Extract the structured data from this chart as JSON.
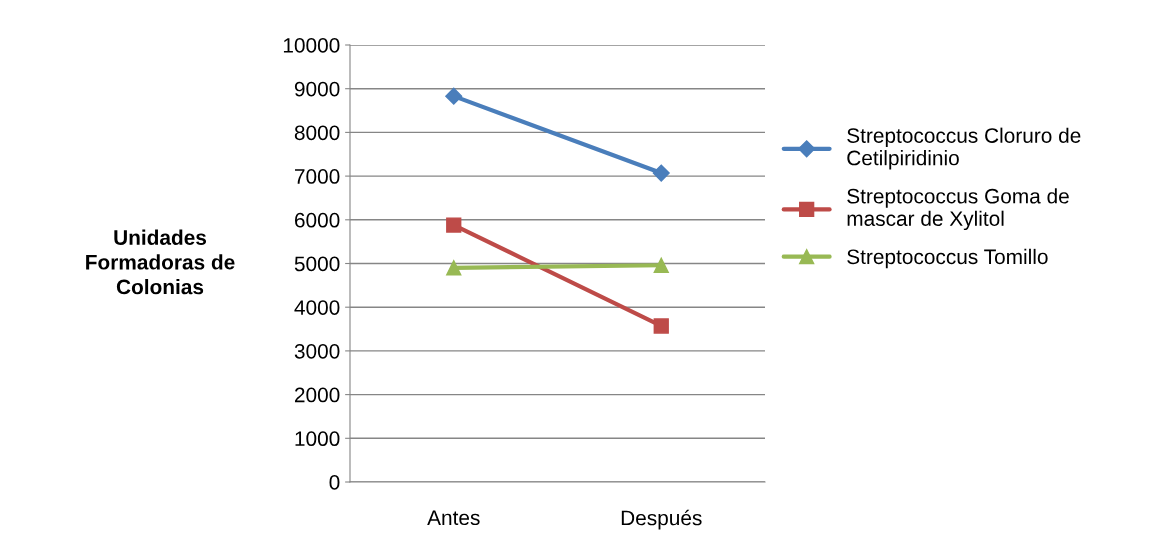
{
  "chart_data": {
    "type": "line",
    "ylabel": "Unidades Formadoras de Colonias",
    "categories": [
      "Antes",
      "Después"
    ],
    "series": [
      {
        "name": "Streptococcus Cloruro de Cetilpiridinio",
        "color": "#4a7ebb",
        "marker": "diamond",
        "values": [
          8830,
          7070
        ]
      },
      {
        "name": "Streptococcus Goma de mascar de Xylitol",
        "color": "#be4b48",
        "marker": "square",
        "values": [
          5880,
          3570
        ]
      },
      {
        "name": "Streptococcus Tomillo",
        "color": "#98b954",
        "marker": "triangle",
        "values": [
          4900,
          4960
        ]
      }
    ],
    "ylim": [
      0,
      10000
    ],
    "yticks": [
      0,
      1000,
      2000,
      3000,
      4000,
      5000,
      6000,
      7000,
      8000,
      9000,
      10000
    ],
    "grid": "y",
    "legend": "right",
    "line_style": "solid"
  }
}
